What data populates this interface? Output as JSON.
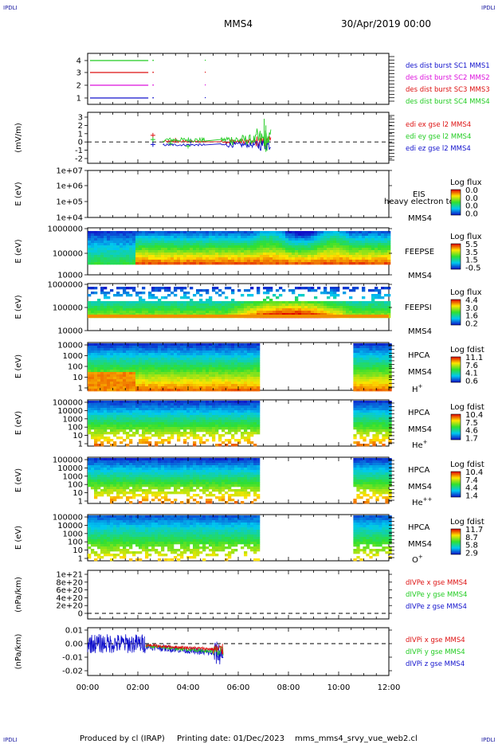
{
  "header": {
    "spacecraft": "MMS4",
    "datetime": "30/Apr/2019 00:00",
    "corner_left": "IPDLI",
    "corner_right": "IPDLI"
  },
  "footer": {
    "produced_by": "Produced by cl (IRAP)",
    "printing_date": "Printing date: 01/Dec/2023",
    "file": "mms_mms4_srvy_vue_web2.cl"
  },
  "colors": {
    "green": "#22cc22",
    "red": "#dd1111",
    "magenta": "#dd11dd",
    "blue": "#1111cc",
    "dashed": "#000000"
  },
  "chart_data": [
    {
      "type": "line",
      "id": "burst",
      "xlim": [
        "00:00",
        "12:00"
      ],
      "ylim": [
        0.5,
        4.5
      ],
      "yticks": [
        "1",
        "2",
        "3",
        "4"
      ],
      "legend": [
        {
          "label": "des dist burst SC1 MMS1",
          "color": "#1111cc"
        },
        {
          "label": "des dist burst SC2 MMS2",
          "color": "#dd11dd"
        },
        {
          "label": "des dist burst SC3 MMS3",
          "color": "#dd1111"
        },
        {
          "label": "des dist burst SC4 MMS4",
          "color": "#22cc22"
        }
      ],
      "series": [
        {
          "name": "des dist burst SC4 MMS4",
          "level": 4,
          "color": "#22cc22",
          "x": [
            "00:00",
            "02:25"
          ]
        },
        {
          "name": "des dist burst SC3 MMS3",
          "level": 3,
          "color": "#dd1111",
          "x": [
            "00:00",
            "02:25"
          ]
        },
        {
          "name": "des dist burst SC2 MMS2",
          "level": 2,
          "color": "#dd11dd",
          "x": [
            "00:00",
            "02:25"
          ]
        },
        {
          "name": "des dist burst SC1 MMS1",
          "level": 1,
          "color": "#1111cc",
          "x": [
            "00:00",
            "02:25"
          ]
        }
      ]
    },
    {
      "type": "line",
      "id": "edi",
      "ylabel": "(mV/m)",
      "ylim": [
        -2,
        3
      ],
      "yticks": [
        "3",
        "2",
        "1",
        "0",
        "-1",
        "-2"
      ],
      "legend": [
        {
          "label": "edi ex gse l2 MMS4",
          "color": "#dd1111"
        },
        {
          "label": "edi ey gse l2 MMS4",
          "color": "#22cc22"
        },
        {
          "label": "edi ez gse l2 MMS4",
          "color": "#1111cc"
        }
      ],
      "zero_line": 0
    },
    {
      "type": "heatmap",
      "id": "eis",
      "ylabel": "E (eV)",
      "yticks": [
        "1e+07",
        "1e+06",
        "1e+05",
        "1e+04"
      ],
      "labels": [
        "EIS",
        "MMS4"
      ],
      "overlay_text": "heavy electron top",
      "colorbar": {
        "title": "Log flux",
        "ticks": [
          "0.0",
          "0.0",
          "0.0",
          "0.0"
        ]
      }
    },
    {
      "type": "heatmap",
      "id": "feepse",
      "ylabel": "E (eV)",
      "yticks": [
        "1000000",
        "100000",
        "10000"
      ],
      "labels": [
        "FEEPSE",
        "MMS4"
      ],
      "colorbar": {
        "title": "Log flux",
        "ticks": [
          "5.5",
          "3.5",
          "1.5",
          "-0.5"
        ]
      }
    },
    {
      "type": "heatmap",
      "id": "feepsi",
      "ylabel": "E (eV)",
      "yticks": [
        "1000000",
        "100000",
        "10000"
      ],
      "labels": [
        "FEEPSI",
        "MMS4"
      ],
      "colorbar": {
        "title": "Log flux",
        "ticks": [
          "4.4",
          "3.0",
          "1.6",
          "0.2"
        ]
      }
    },
    {
      "type": "heatmap",
      "id": "hpca_h",
      "ylabel": "E (eV)",
      "yticks": [
        "10000",
        "1000",
        "100",
        "10",
        "1"
      ],
      "labels": [
        "HPCA",
        "MMS4"
      ],
      "species": "H",
      "species_sup": "+",
      "data_gap": [
        "06:50",
        "10:35"
      ],
      "colorbar": {
        "title": "Log fdist",
        "ticks": [
          "11.1",
          "7.6",
          "4.1",
          "0.6"
        ]
      }
    },
    {
      "type": "heatmap",
      "id": "hpca_he1",
      "ylabel": "E (eV)",
      "yticks": [
        "100000",
        "10000",
        "1000",
        "100",
        "10",
        "1"
      ],
      "labels": [
        "HPCA",
        "MMS4"
      ],
      "species": "He",
      "species_sup": "+",
      "data_gap": [
        "06:50",
        "10:35"
      ],
      "colorbar": {
        "title": "Log fdist",
        "ticks": [
          "10.4",
          "7.5",
          "4.6",
          "1.7"
        ]
      }
    },
    {
      "type": "heatmap",
      "id": "hpca_he2",
      "ylabel": "E (eV)",
      "yticks": [
        "100000",
        "10000",
        "1000",
        "100",
        "10",
        "1"
      ],
      "labels": [
        "HPCA",
        "MMS4"
      ],
      "species": "He",
      "species_sup": "++",
      "data_gap": [
        "06:50",
        "10:35"
      ],
      "colorbar": {
        "title": "Log fdist",
        "ticks": [
          "10.4",
          "7.4",
          "4.4",
          "1.4"
        ]
      }
    },
    {
      "type": "heatmap",
      "id": "hpca_o",
      "ylabel": "E (eV)",
      "yticks": [
        "100000",
        "10000",
        "1000",
        "100",
        "10",
        "1"
      ],
      "labels": [
        "HPCA",
        "MMS4"
      ],
      "species": "O",
      "species_sup": "+",
      "data_gap": [
        "06:50",
        "10:35"
      ],
      "colorbar": {
        "title": "Log fdist",
        "ticks": [
          "11.7",
          "8.7",
          "5.8",
          "2.9"
        ]
      }
    },
    {
      "type": "line",
      "id": "divpe",
      "ylabel": "(nPa/km)",
      "yticks": [
        "1e+21",
        "8e+20",
        "6e+20",
        "4e+20",
        "2e+20",
        "0"
      ],
      "ylim": [
        0,
        1e+21
      ],
      "zero_line": 0,
      "legend": [
        {
          "label": "dIVPe x gse MMS4",
          "color": "#dd1111"
        },
        {
          "label": "dIVPe y gse MMS4",
          "color": "#22cc22"
        },
        {
          "label": "dIVPe z gse MMS4",
          "color": "#1111cc"
        }
      ]
    },
    {
      "type": "line",
      "id": "divpi",
      "ylabel": "(nPa/km)",
      "yticks": [
        "0.01",
        "0.00",
        "-0.01",
        "-0.02"
      ],
      "ylim": [
        -0.025,
        0.012
      ],
      "zero_line": 0,
      "xticks": [
        "00:00",
        "02:00",
        "04:00",
        "06:00",
        "08:00",
        "10:00",
        "12:00"
      ],
      "legend": [
        {
          "label": "dIVPi x gse MMS4",
          "color": "#dd1111"
        },
        {
          "label": "dIVPi y gse MMS4",
          "color": "#22cc22"
        },
        {
          "label": "dIVPi z gse MMS4",
          "color": "#1111cc"
        }
      ]
    }
  ]
}
